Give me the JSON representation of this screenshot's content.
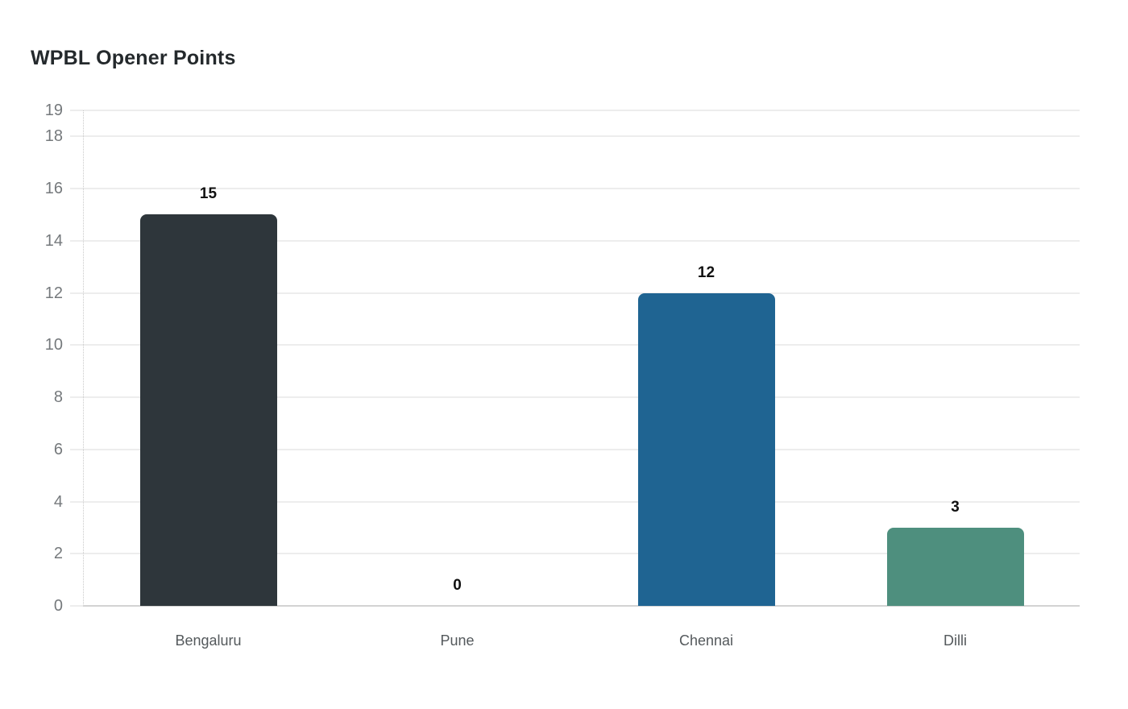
{
  "chart_data": {
    "type": "bar",
    "title": "WPBL Opener Points",
    "categories": [
      "Bengaluru",
      "Pune",
      "Chennai",
      "Dilli"
    ],
    "values": [
      15,
      0,
      12,
      3
    ],
    "value_labels": [
      "15",
      "0",
      "12",
      "3"
    ],
    "bar_colors": [
      "#2e363b",
      null,
      "#1f6492",
      "#4e8f7e"
    ],
    "xlabel": "",
    "ylabel": "",
    "ylim": [
      0,
      19
    ],
    "y_ticks": [
      0,
      2,
      4,
      6,
      8,
      10,
      12,
      14,
      16,
      18,
      19
    ],
    "grid": true,
    "legend": false,
    "styles": {
      "background": "#ffffff",
      "title_color": "#24292c",
      "tick_label_color": "#75797c",
      "category_label_color": "#54595c",
      "value_label_color": "#111111",
      "grid_color": "#ededed",
      "axis_dotted_color": "#c9c9c9",
      "baseline_color": "#d3d3d3"
    }
  }
}
